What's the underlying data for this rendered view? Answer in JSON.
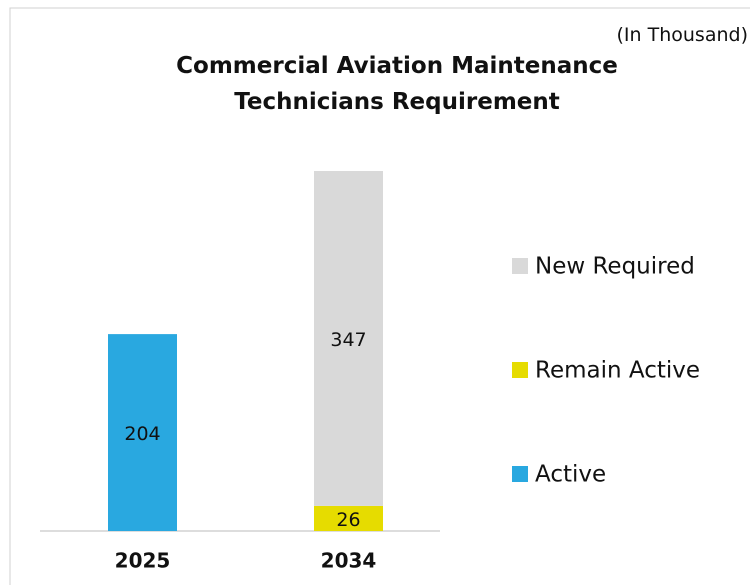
{
  "chart_data": {
    "type": "stacked_bar",
    "title": "Commercial Aviation Maintenance Technicians Requirement",
    "subtitle": "(In Thousand)",
    "categories": [
      "2025",
      "2034"
    ],
    "series": [
      {
        "name": "Active",
        "color": "#29a8e0",
        "values": [
          204,
          null
        ]
      },
      {
        "name": "Remain Active",
        "color": "#e6dc00",
        "values": [
          null,
          26
        ]
      },
      {
        "name": "New Required",
        "color": "#d9d9d9",
        "values": [
          null,
          347
        ]
      }
    ],
    "legend": "right"
  }
}
